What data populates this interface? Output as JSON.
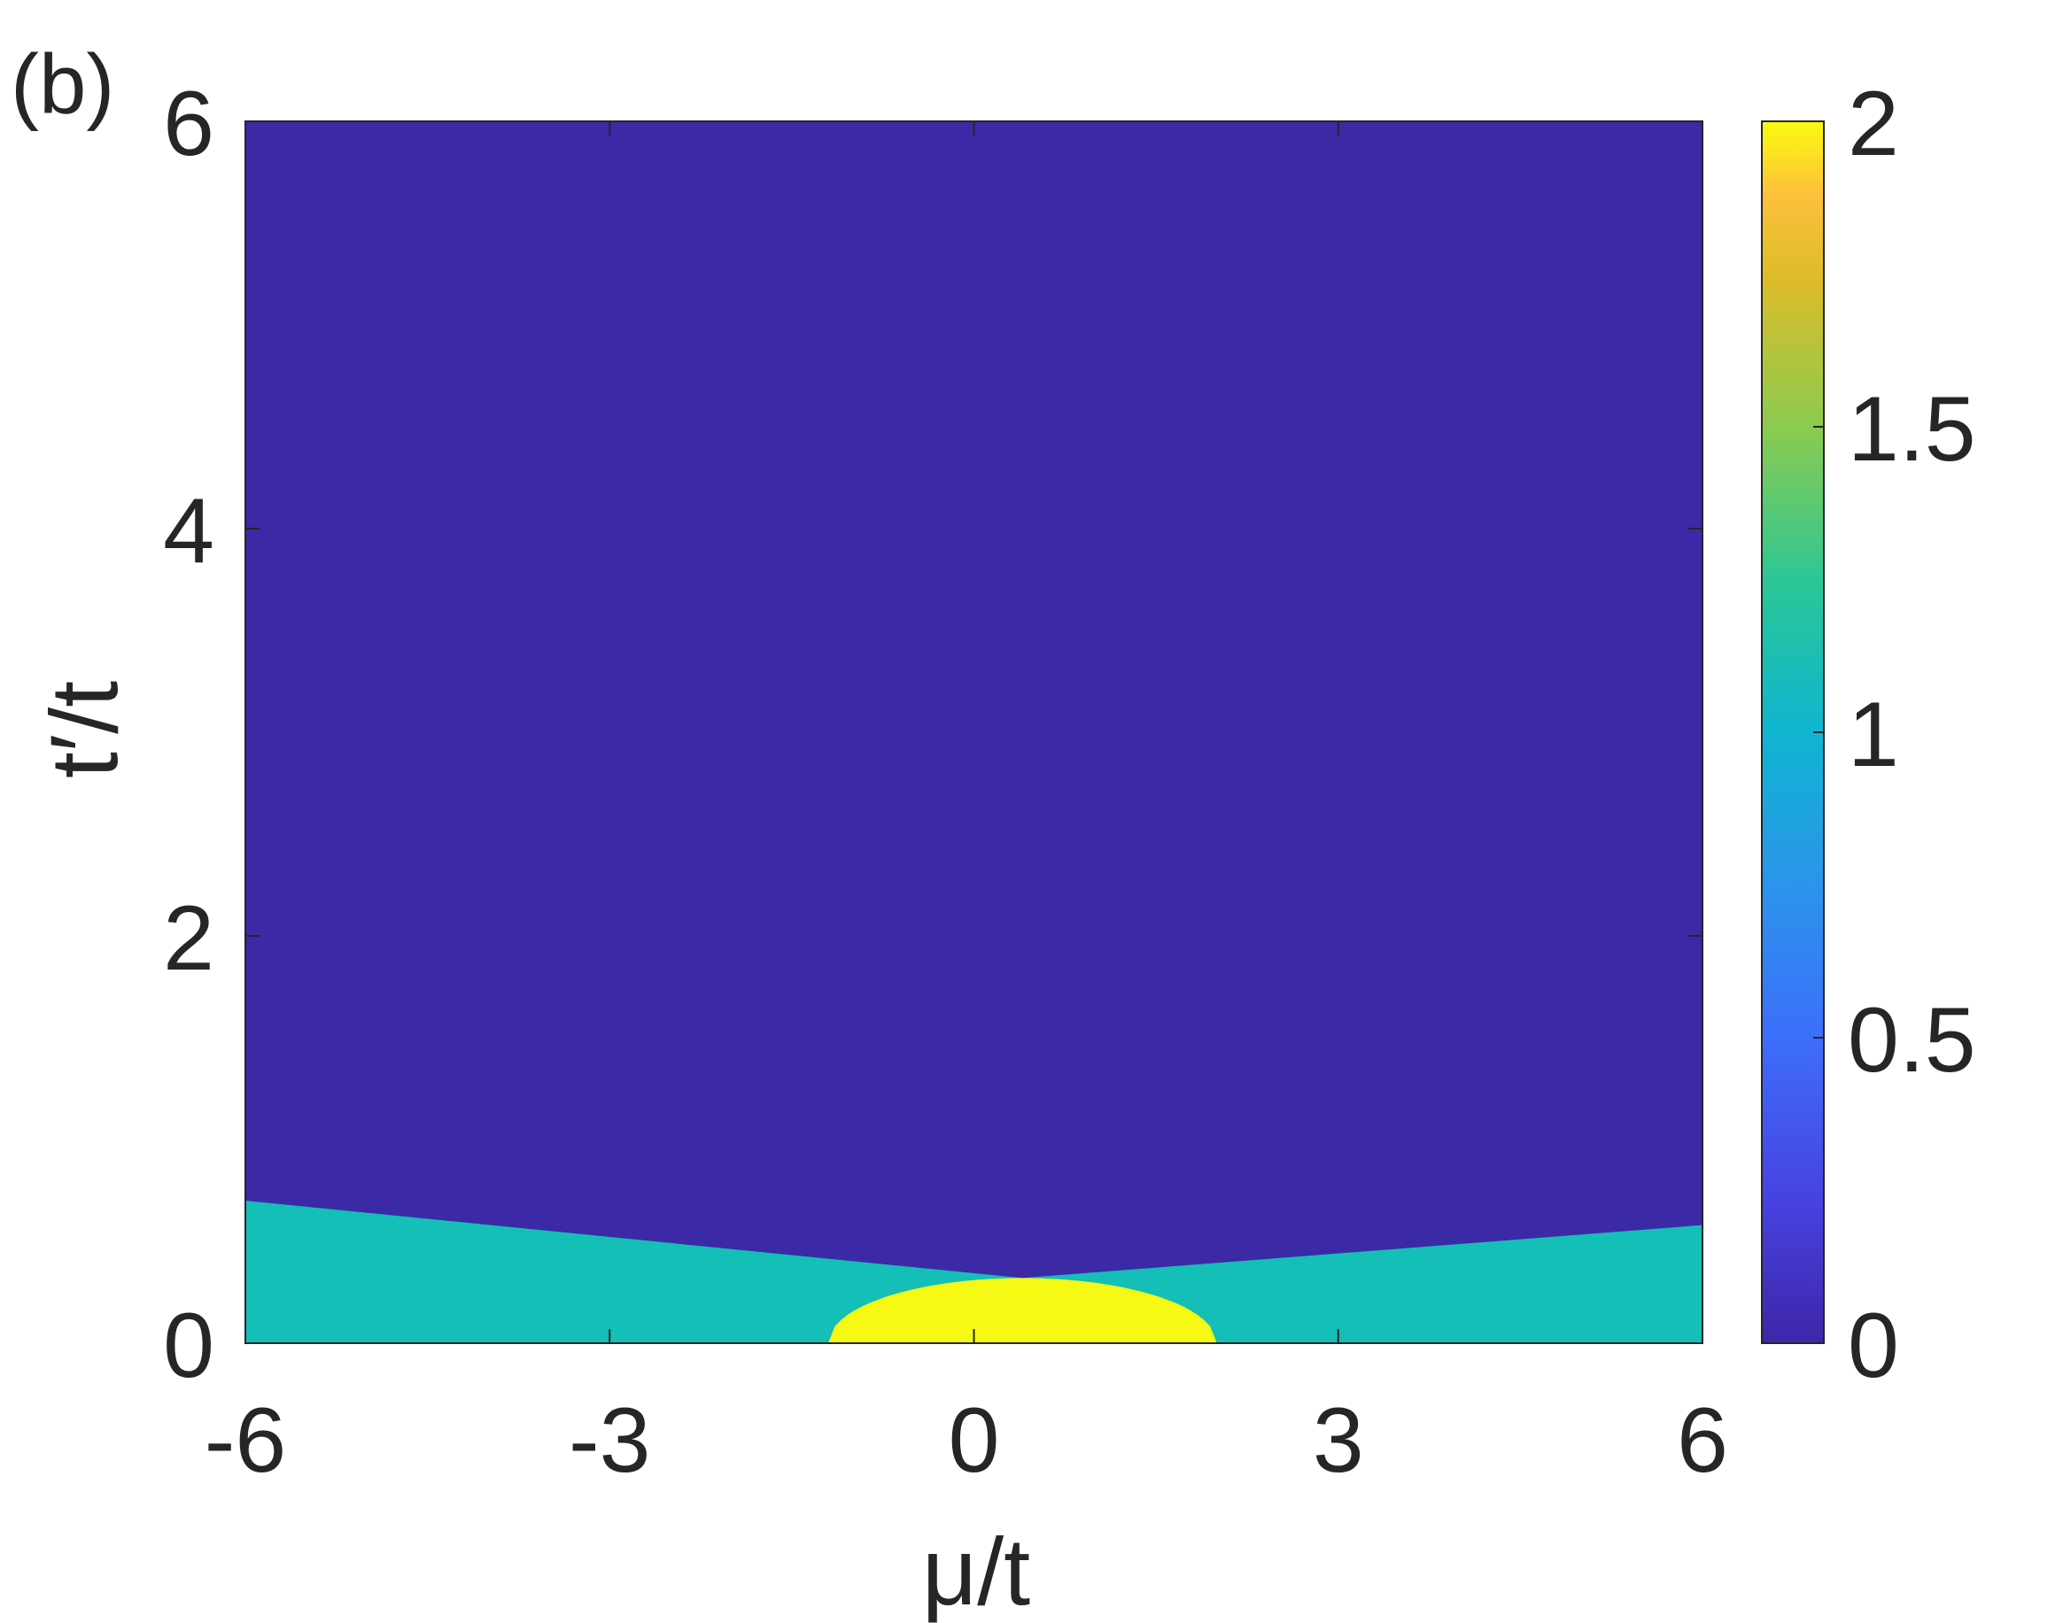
{
  "panel_label": "(b)",
  "chart_data": {
    "type": "heatmap",
    "xlabel": "μ/t",
    "ylabel": "t′/t",
    "xlim": [
      -6,
      6
    ],
    "ylim": [
      0,
      6
    ],
    "xticks": [
      -6,
      -3,
      0,
      3,
      6
    ],
    "yticks": [
      0,
      2,
      4,
      6
    ],
    "colorbar": {
      "min": 0,
      "max": 2,
      "ticks": [
        0,
        0.5,
        1,
        1.5,
        2
      ],
      "tick_labels": [
        "0",
        "0.5",
        "1",
        "1.5",
        "2"
      ],
      "colormap": "parula"
    },
    "regions": [
      {
        "value": 0,
        "color": "#3c29a6",
        "boundary": "above"
      },
      {
        "value": 1,
        "color": "#14bfb7",
        "upper_boundary": [
          [
            -6,
            0.7
          ],
          [
            0.4,
            0.32
          ],
          [
            6,
            0.58
          ]
        ]
      },
      {
        "value": 2,
        "color": "#f5f914",
        "center": 0.4,
        "half_width": 1.6,
        "peak": 0.32
      }
    ]
  }
}
